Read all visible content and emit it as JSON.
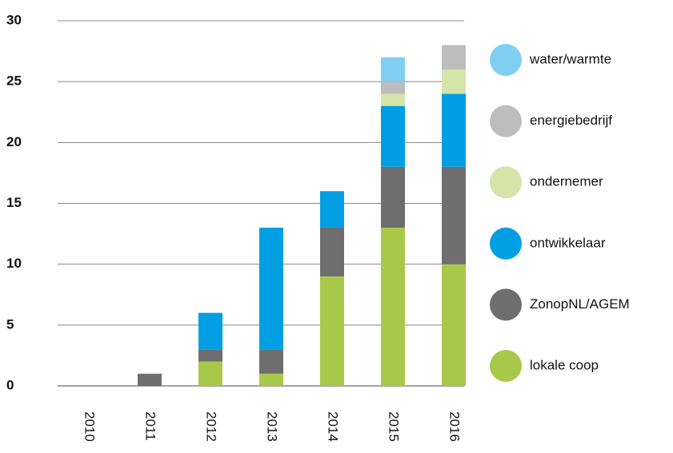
{
  "chart_data": {
    "type": "stacked_bar",
    "categories": [
      "2010",
      "2011",
      "2012",
      "2013",
      "2014",
      "2015",
      "2016"
    ],
    "series": [
      {
        "name": "lokale coop",
        "color": "#a8c84a",
        "values": [
          0,
          0,
          2,
          1,
          9,
          13,
          10
        ]
      },
      {
        "name": "ZonopNL/AGEM",
        "color": "#6e6e6e",
        "values": [
          0,
          1,
          1,
          2,
          4,
          5,
          8
        ]
      },
      {
        "name": "ontwikkelaar",
        "color": "#009fe3",
        "values": [
          0,
          0,
          3,
          10,
          3,
          5,
          6
        ]
      },
      {
        "name": "ondernemer",
        "color": "#d5e4a8",
        "values": [
          0,
          0,
          0,
          0,
          0,
          1,
          2
        ]
      },
      {
        "name": "energiebedrijf",
        "color": "#bdbdbd",
        "values": [
          0,
          0,
          0,
          0,
          0,
          1,
          2
        ]
      },
      {
        "name": "water/warmte",
        "color": "#80cff2",
        "values": [
          0,
          0,
          0,
          0,
          0,
          2,
          0
        ]
      }
    ],
    "ylim": [
      0,
      30
    ],
    "yticks": [
      0,
      5,
      10,
      15,
      20,
      25,
      30
    ],
    "grid": true,
    "legend": "right"
  }
}
